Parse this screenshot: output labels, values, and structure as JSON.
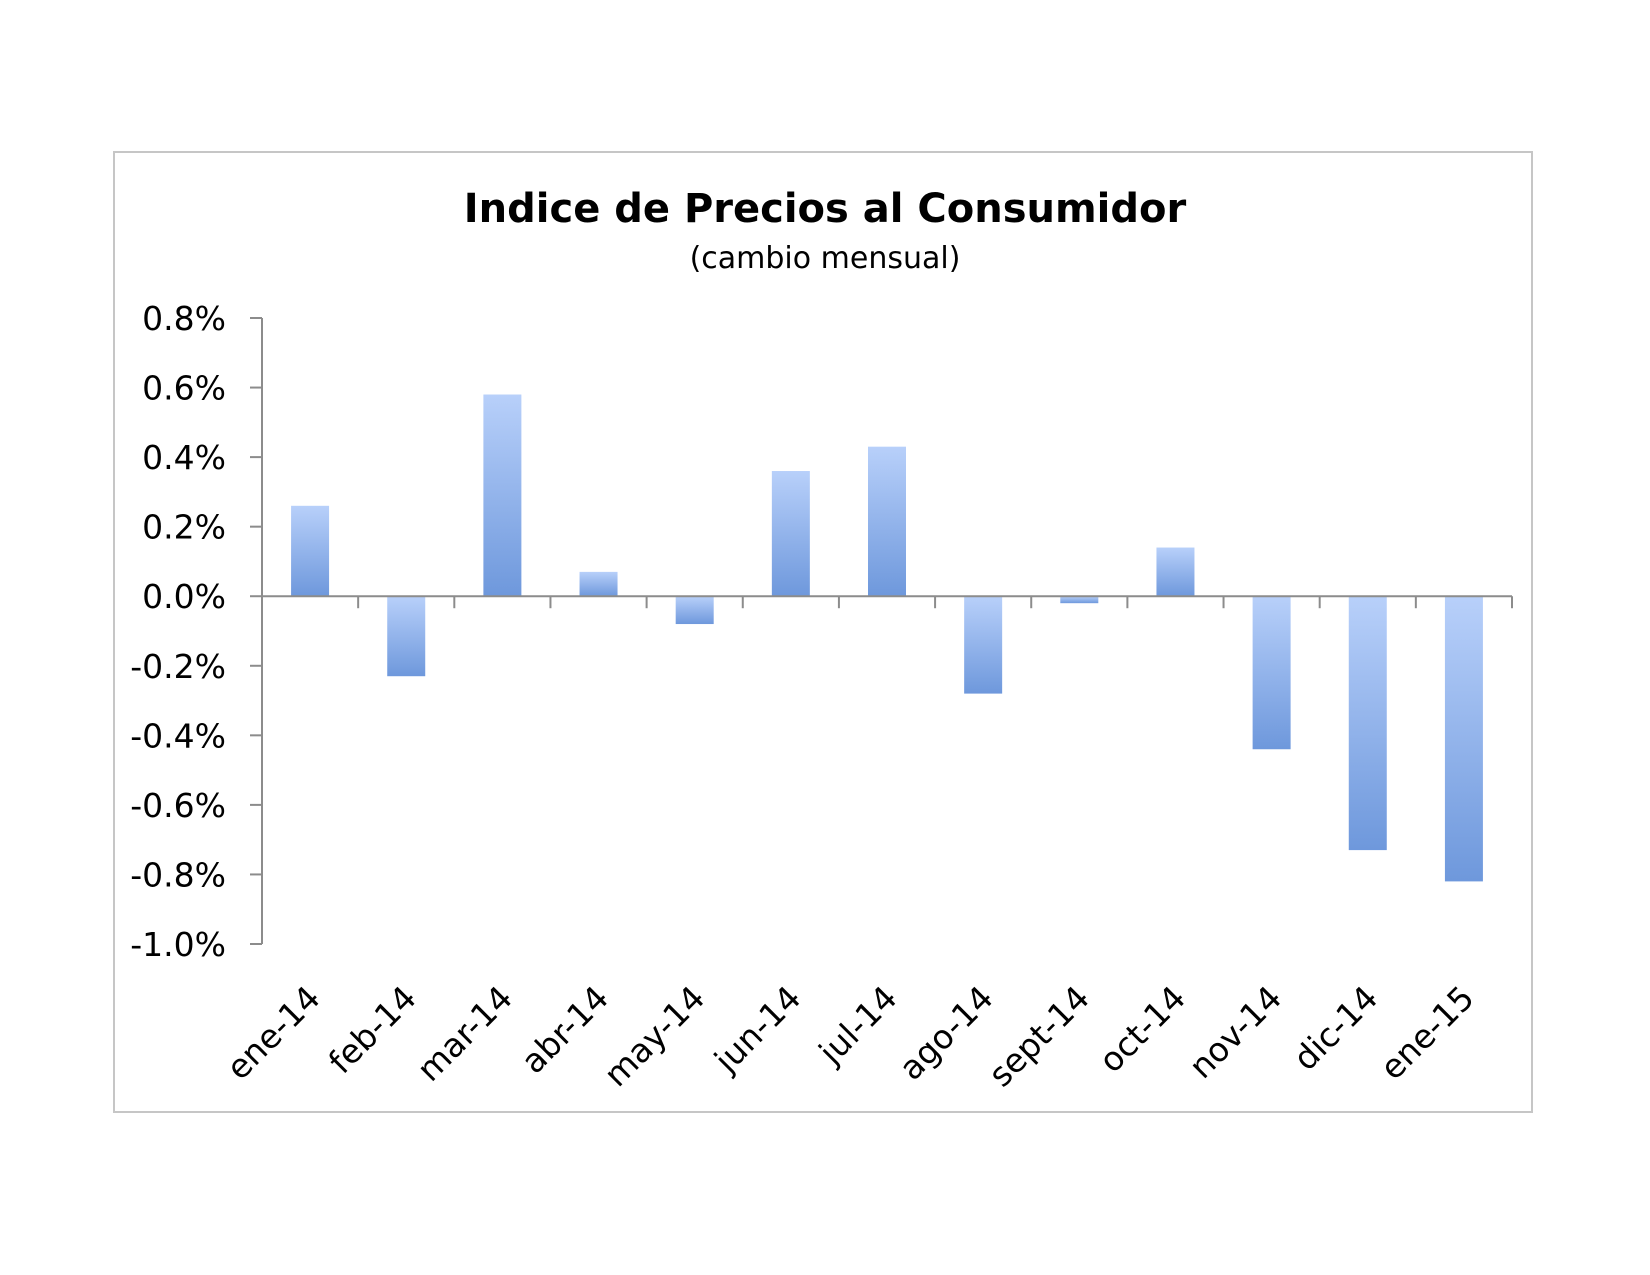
{
  "chart_data": {
    "type": "bar",
    "title": "Indice de Precios al Consumidor",
    "subtitle": "(cambio mensual)",
    "xlabel": "",
    "ylabel": "",
    "categories": [
      "ene-14",
      "feb-14",
      "mar-14",
      "abr-14",
      "may-14",
      "jun-14",
      "jul-14",
      "ago-14",
      "sept-14",
      "oct-14",
      "nov-14",
      "dic-14",
      "ene-15"
    ],
    "values": [
      0.26,
      -0.23,
      0.58,
      0.07,
      -0.08,
      0.36,
      0.43,
      -0.28,
      -0.02,
      0.14,
      -0.44,
      -0.73,
      -0.82
    ],
    "value_unit": "%",
    "ylim": [
      -1.0,
      0.8
    ],
    "yticks": [
      0.8,
      0.6,
      0.4,
      0.2,
      0.0,
      -0.2,
      -0.4,
      -0.6,
      -0.8,
      -1.0
    ],
    "ytick_labels": [
      "0.8%",
      "0.6%",
      "0.4%",
      "0.2%",
      "0.0%",
      "-0.2%",
      "-0.4%",
      "-0.6%",
      "-0.8%",
      "-1.0%"
    ],
    "grid": false,
    "legend": "none",
    "colors": {
      "bar_light": "#b8d0fa",
      "bar_dark": "#6e98dc",
      "axis": "#8c8c8c",
      "frame": "#c6c6c6"
    }
  }
}
